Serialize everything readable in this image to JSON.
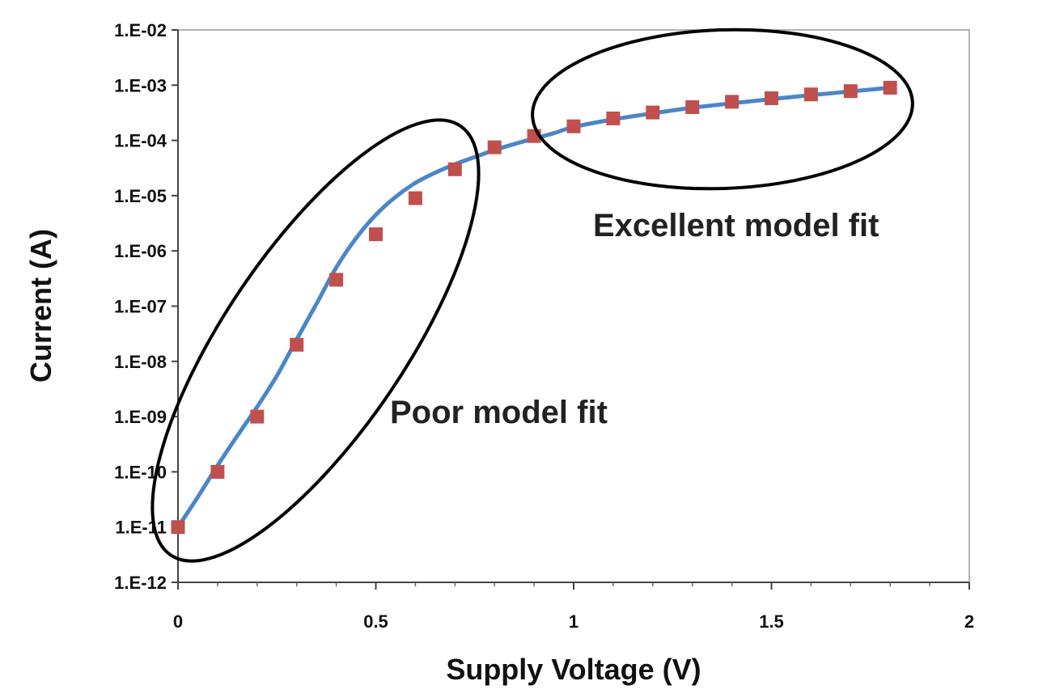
{
  "chart_data": {
    "type": "scatter",
    "xlabel": "Supply Voltage (V)",
    "ylabel": "Current (A)",
    "xlim": [
      0,
      2
    ],
    "ylim": [
      1e-12,
      0.01
    ],
    "yscale": "log",
    "x_ticks": [
      0,
      0.5,
      1,
      1.5,
      2
    ],
    "x_tick_labels": [
      "0",
      "0.5",
      "1",
      "1.5",
      "2"
    ],
    "y_ticks": [
      1e-12,
      1e-11,
      1e-10,
      1e-09,
      1e-08,
      1e-07,
      1e-06,
      1e-05,
      0.0001,
      0.001,
      0.01
    ],
    "y_tick_labels": [
      "1.E-12",
      "1.E-11",
      "1.E-10",
      "1.E-09",
      "1.E-08",
      "1.E-07",
      "1.E-06",
      "1.E-05",
      "1.E-04",
      "1.E-03",
      "1.E-02"
    ],
    "grid": false,
    "series": [
      {
        "kind": "line",
        "color": "#4a86c8",
        "x": [
          0,
          0.05,
          0.1,
          0.15,
          0.2,
          0.25,
          0.3,
          0.35,
          0.4,
          0.45,
          0.5,
          0.55,
          0.6,
          0.65,
          0.7,
          0.75,
          0.8,
          0.85,
          0.9,
          0.95,
          1.0,
          1.1,
          1.2,
          1.3,
          1.4,
          1.5,
          1.6,
          1.7,
          1.8
        ],
        "y": [
          1e-11,
          3.5e-11,
          1.3e-10,
          4.5e-10,
          1.5e-09,
          5.5e-09,
          2.5e-08,
          1.1e-07,
          5e-07,
          1.7e-06,
          4.5e-06,
          9.5e-06,
          1.7e-05,
          2.6e-05,
          3.7e-05,
          5e-05,
          6.7e-05,
          8.6e-05,
          0.000108,
          0.000135,
          0.000175,
          0.00024,
          0.00031,
          0.00039,
          0.00047,
          0.00056,
          0.00066,
          0.00077,
          0.0009
        ]
      },
      {
        "kind": "markers",
        "color": "#c0504d",
        "x": [
          0,
          0.1,
          0.2,
          0.3,
          0.4,
          0.5,
          0.6,
          0.7,
          0.8,
          0.9,
          1.0,
          1.1,
          1.2,
          1.3,
          1.4,
          1.5,
          1.6,
          1.7,
          1.8
        ],
        "y": [
          1e-11,
          1e-10,
          1e-09,
          2e-08,
          3e-07,
          2e-06,
          9e-06,
          3e-05,
          7.5e-05,
          0.00012,
          0.00018,
          0.00025,
          0.00032,
          0.0004,
          0.0005,
          0.00058,
          0.00068,
          0.00078,
          0.0009
        ]
      }
    ],
    "annotations": [
      {
        "text": "Poor model fit",
        "encloses_x_range": [
          0,
          0.7
        ]
      },
      {
        "text": "Excellent model fit",
        "encloses_x_range": [
          0.9,
          1.8
        ]
      }
    ]
  }
}
